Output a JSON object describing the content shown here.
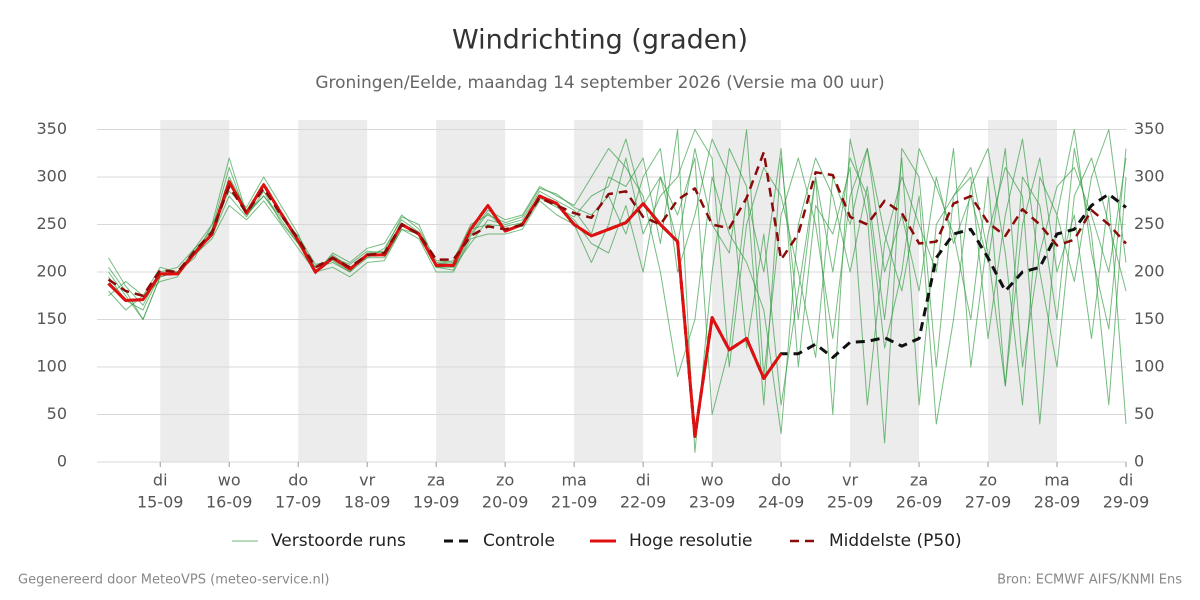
{
  "chart_data": {
    "type": "line",
    "title": "Windrichting (graden)",
    "subtitle": "Groningen/Eelde, maandag 14 september 2026 (Versie ma 00 uur)",
    "x": [
      -18,
      -12,
      -6,
      0,
      6,
      12,
      18,
      24,
      30,
      36,
      42,
      48,
      54,
      60,
      66,
      72,
      78,
      84,
      90,
      96,
      102,
      108,
      114,
      120,
      126,
      132,
      138,
      144,
      150,
      156,
      162,
      168,
      174,
      180,
      186,
      192,
      198,
      204,
      210,
      216,
      222,
      228,
      234,
      240,
      246,
      252,
      258,
      264,
      270,
      276,
      282,
      288,
      294,
      300,
      306,
      312,
      318,
      324,
      330,
      336
    ],
    "xlim": [
      -22,
      336
    ],
    "xticks": [
      {
        "value": 0,
        "label": "di",
        "date": "15-09"
      },
      {
        "value": 24,
        "label": "wo",
        "date": "16-09"
      },
      {
        "value": 48,
        "label": "do",
        "date": "17-09"
      },
      {
        "value": 72,
        "label": "vr",
        "date": "18-09"
      },
      {
        "value": 96,
        "label": "za",
        "date": "19-09"
      },
      {
        "value": 120,
        "label": "zo",
        "date": "20-09"
      },
      {
        "value": 144,
        "label": "ma",
        "date": "21-09"
      },
      {
        "value": 168,
        "label": "di",
        "date": "22-09"
      },
      {
        "value": 192,
        "label": "wo",
        "date": "23-09"
      },
      {
        "value": 216,
        "label": "do",
        "date": "24-09"
      },
      {
        "value": 240,
        "label": "vr",
        "date": "25-09"
      },
      {
        "value": 264,
        "label": "za",
        "date": "26-09"
      },
      {
        "value": 288,
        "label": "zo",
        "date": "27-09"
      },
      {
        "value": 312,
        "label": "ma",
        "date": "28-09"
      },
      {
        "value": 336,
        "label": "di",
        "date": "29-09"
      }
    ],
    "ylim": [
      0,
      360
    ],
    "yticks": [
      0,
      50,
      100,
      150,
      200,
      250,
      300,
      350
    ],
    "y2lim": [
      0,
      360
    ],
    "y2ticks": [
      0,
      50,
      100,
      150,
      200,
      250,
      300,
      350
    ],
    "grid": true,
    "legend": "bottom",
    "series": [
      {
        "name": "Verstoorde runs",
        "color": "#2e9a3e",
        "width": 1,
        "dashed": false,
        "members": [
          [
            200,
            175,
            150,
            195,
            200,
            222,
            245,
            310,
            260,
            280,
            255,
            230,
            205,
            210,
            200,
            215,
            225,
            255,
            242,
            205,
            205,
            230,
            255,
            250,
            255,
            285,
            275,
            265,
            240,
            300,
            290,
            320,
            230,
            350,
            10,
            200,
            330,
            290,
            60,
            320,
            150,
            300,
            50,
            340,
            260,
            20,
            330,
            300,
            100,
            280,
            310,
            220,
            80,
            300,
            270,
            150,
            330,
            240,
            60,
            300
          ],
          [
            215,
            185,
            165,
            200,
            205,
            225,
            250,
            285,
            268,
            300,
            270,
            240,
            198,
            220,
            210,
            225,
            230,
            260,
            245,
            212,
            210,
            240,
            265,
            255,
            260,
            290,
            280,
            270,
            300,
            330,
            310,
            280,
            200,
            90,
            150,
            300,
            240,
            210,
            160,
            30,
            250,
            320,
            280,
            200,
            290,
            150,
            320,
            60,
            250,
            280,
            300,
            130,
            260,
            340,
            200,
            100,
            280,
            320,
            250,
            180
          ],
          [
            180,
            160,
            175,
            205,
            200,
            218,
            235,
            270,
            255,
            275,
            250,
            225,
            200,
            205,
            195,
            210,
            212,
            245,
            235,
            200,
            200,
            235,
            240,
            240,
            245,
            275,
            260,
            250,
            210,
            250,
            320,
            240,
            280,
            300,
            350,
            320,
            100,
            250,
            310,
            280,
            200,
            110,
            300,
            250,
            330,
            240,
            180,
            280,
            40,
            150,
            290,
            330,
            220,
            60,
            300,
            260,
            350,
            220,
            140,
            330
          ],
          [
            195,
            170,
            160,
            198,
            198,
            225,
            240,
            300,
            265,
            290,
            262,
            235,
            205,
            215,
            208,
            222,
            220,
            252,
            238,
            210,
            208,
            245,
            250,
            248,
            252,
            280,
            270,
            255,
            230,
            220,
            270,
            200,
            300,
            260,
            320,
            50,
            120,
            280,
            200,
            330,
            100,
            270,
            240,
            310,
            60,
            230,
            300,
            250,
            200,
            330,
            100,
            240,
            310,
            280,
            40,
            260,
            190,
            300,
            350,
            210
          ],
          [
            205,
            180,
            150,
            195,
            200,
            215,
            250,
            320,
            262,
            280,
            258,
            238,
            208,
            212,
            200,
            220,
            222,
            258,
            250,
            208,
            212,
            250,
            260,
            252,
            258,
            288,
            282,
            268,
            260,
            280,
            240,
            300,
            330,
            200,
            260,
            340,
            300,
            120,
            240,
            60,
            180,
            300,
            200,
            320,
            280,
            120,
            200,
            330,
            290,
            240,
            150,
            300,
            80,
            250,
            320,
            200,
            260,
            130,
            280,
            40
          ],
          [
            175,
            190,
            175,
            190,
            195,
            222,
            238,
            280,
            258,
            285,
            252,
            230,
            200,
            218,
            205,
            215,
            215,
            245,
            240,
            205,
            202,
            238,
            262,
            245,
            248,
            278,
            268,
            258,
            280,
            290,
            340,
            270,
            300,
            230,
            330,
            250,
            220,
            350,
            90,
            260,
            320,
            250,
            130,
            280,
            330,
            200,
            260,
            180,
            300,
            230,
            280,
            210,
            330,
            100,
            220,
            290,
            310,
            260,
            200,
            320
          ]
        ]
      },
      {
        "name": "Controle",
        "color": "#111111",
        "width": 3,
        "dashed": true,
        "values": [
          188,
          170,
          171,
          198,
          198,
          220,
          240,
          295,
          262,
          292,
          262,
          233,
          200,
          215,
          203,
          218,
          218,
          250,
          240,
          207,
          207,
          245,
          270,
          243,
          250,
          280,
          272,
          250,
          238,
          245,
          252,
          272,
          250,
          232,
          27,
          152,
          118,
          130,
          88,
          114,
          114,
          124,
          110,
          126,
          127,
          131,
          122,
          130,
          215,
          240,
          245,
          215,
          180,
          200,
          205,
          240,
          245,
          270,
          282,
          268
        ]
      },
      {
        "name": "Hoge resolutie",
        "color": "#e01010",
        "width": 3,
        "dashed": false,
        "values": [
          188,
          170,
          171,
          198,
          198,
          220,
          240,
          295,
          262,
          292,
          262,
          233,
          200,
          215,
          203,
          218,
          218,
          250,
          240,
          207,
          207,
          245,
          270,
          243,
          250,
          280,
          272,
          250,
          238,
          245,
          252,
          272,
          250,
          232,
          27,
          152,
          118,
          130,
          88,
          114,
          null,
          null,
          null,
          null,
          null,
          null,
          null,
          null,
          null,
          null,
          null,
          null,
          null,
          null,
          null,
          null,
          null,
          null,
          null,
          null
        ]
      },
      {
        "name": "Middelste (P50)",
        "color": "#8b0a0a",
        "width": 2.5,
        "dashed": true,
        "values": [
          192,
          180,
          175,
          202,
          200,
          222,
          242,
          290,
          262,
          288,
          260,
          235,
          205,
          215,
          205,
          218,
          220,
          250,
          240,
          213,
          213,
          238,
          248,
          245,
          250,
          278,
          270,
          262,
          257,
          282,
          285,
          258,
          250,
          276,
          288,
          250,
          246,
          278,
          326,
          213,
          240,
          305,
          302,
          258,
          250,
          275,
          262,
          230,
          232,
          272,
          280,
          252,
          238,
          266,
          250,
          228,
          234,
          265,
          250,
          230
        ]
      }
    ],
    "footer_left": "Gegenereerd door MeteoVPS (meteo-service.nl)",
    "footer_right": "Bron: ECMWF AIFS/KNMI Ens"
  }
}
